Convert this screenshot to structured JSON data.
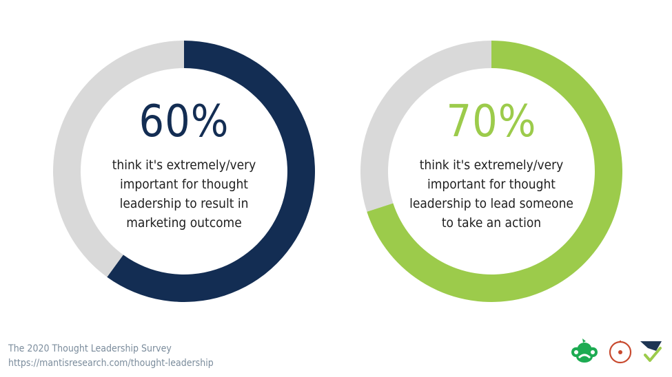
{
  "chart_data": [
    {
      "type": "pie",
      "variant": "donut",
      "values": [
        60,
        40
      ],
      "colors": [
        "#132d53",
        "#d9d9d9"
      ],
      "center_value": "60%",
      "description": "think it's extremely/very\nimportant for thought\nleadership to result in\nmarketing outcome",
      "value_color": "#132d53"
    },
    {
      "type": "pie",
      "variant": "donut",
      "values": [
        70,
        30
      ],
      "colors": [
        "#9ccb4b",
        "#d9d9d9"
      ],
      "center_value": "70%",
      "description": "think it's extremely/very\nimportant for thought\nleadership to lead someone\nto take an action",
      "value_color": "#9ccb4b"
    }
  ],
  "footer": {
    "source": "The 2020 Thought Leadership Survey",
    "url": "https://mantisresearch.com/thought-leadership"
  },
  "logos": {
    "items": [
      "surveymonkey-icon",
      "circle-target-icon",
      "checkmark-flag-icon"
    ],
    "colors": [
      "#1dab52",
      "#c84a2f",
      "#1e3553"
    ]
  }
}
